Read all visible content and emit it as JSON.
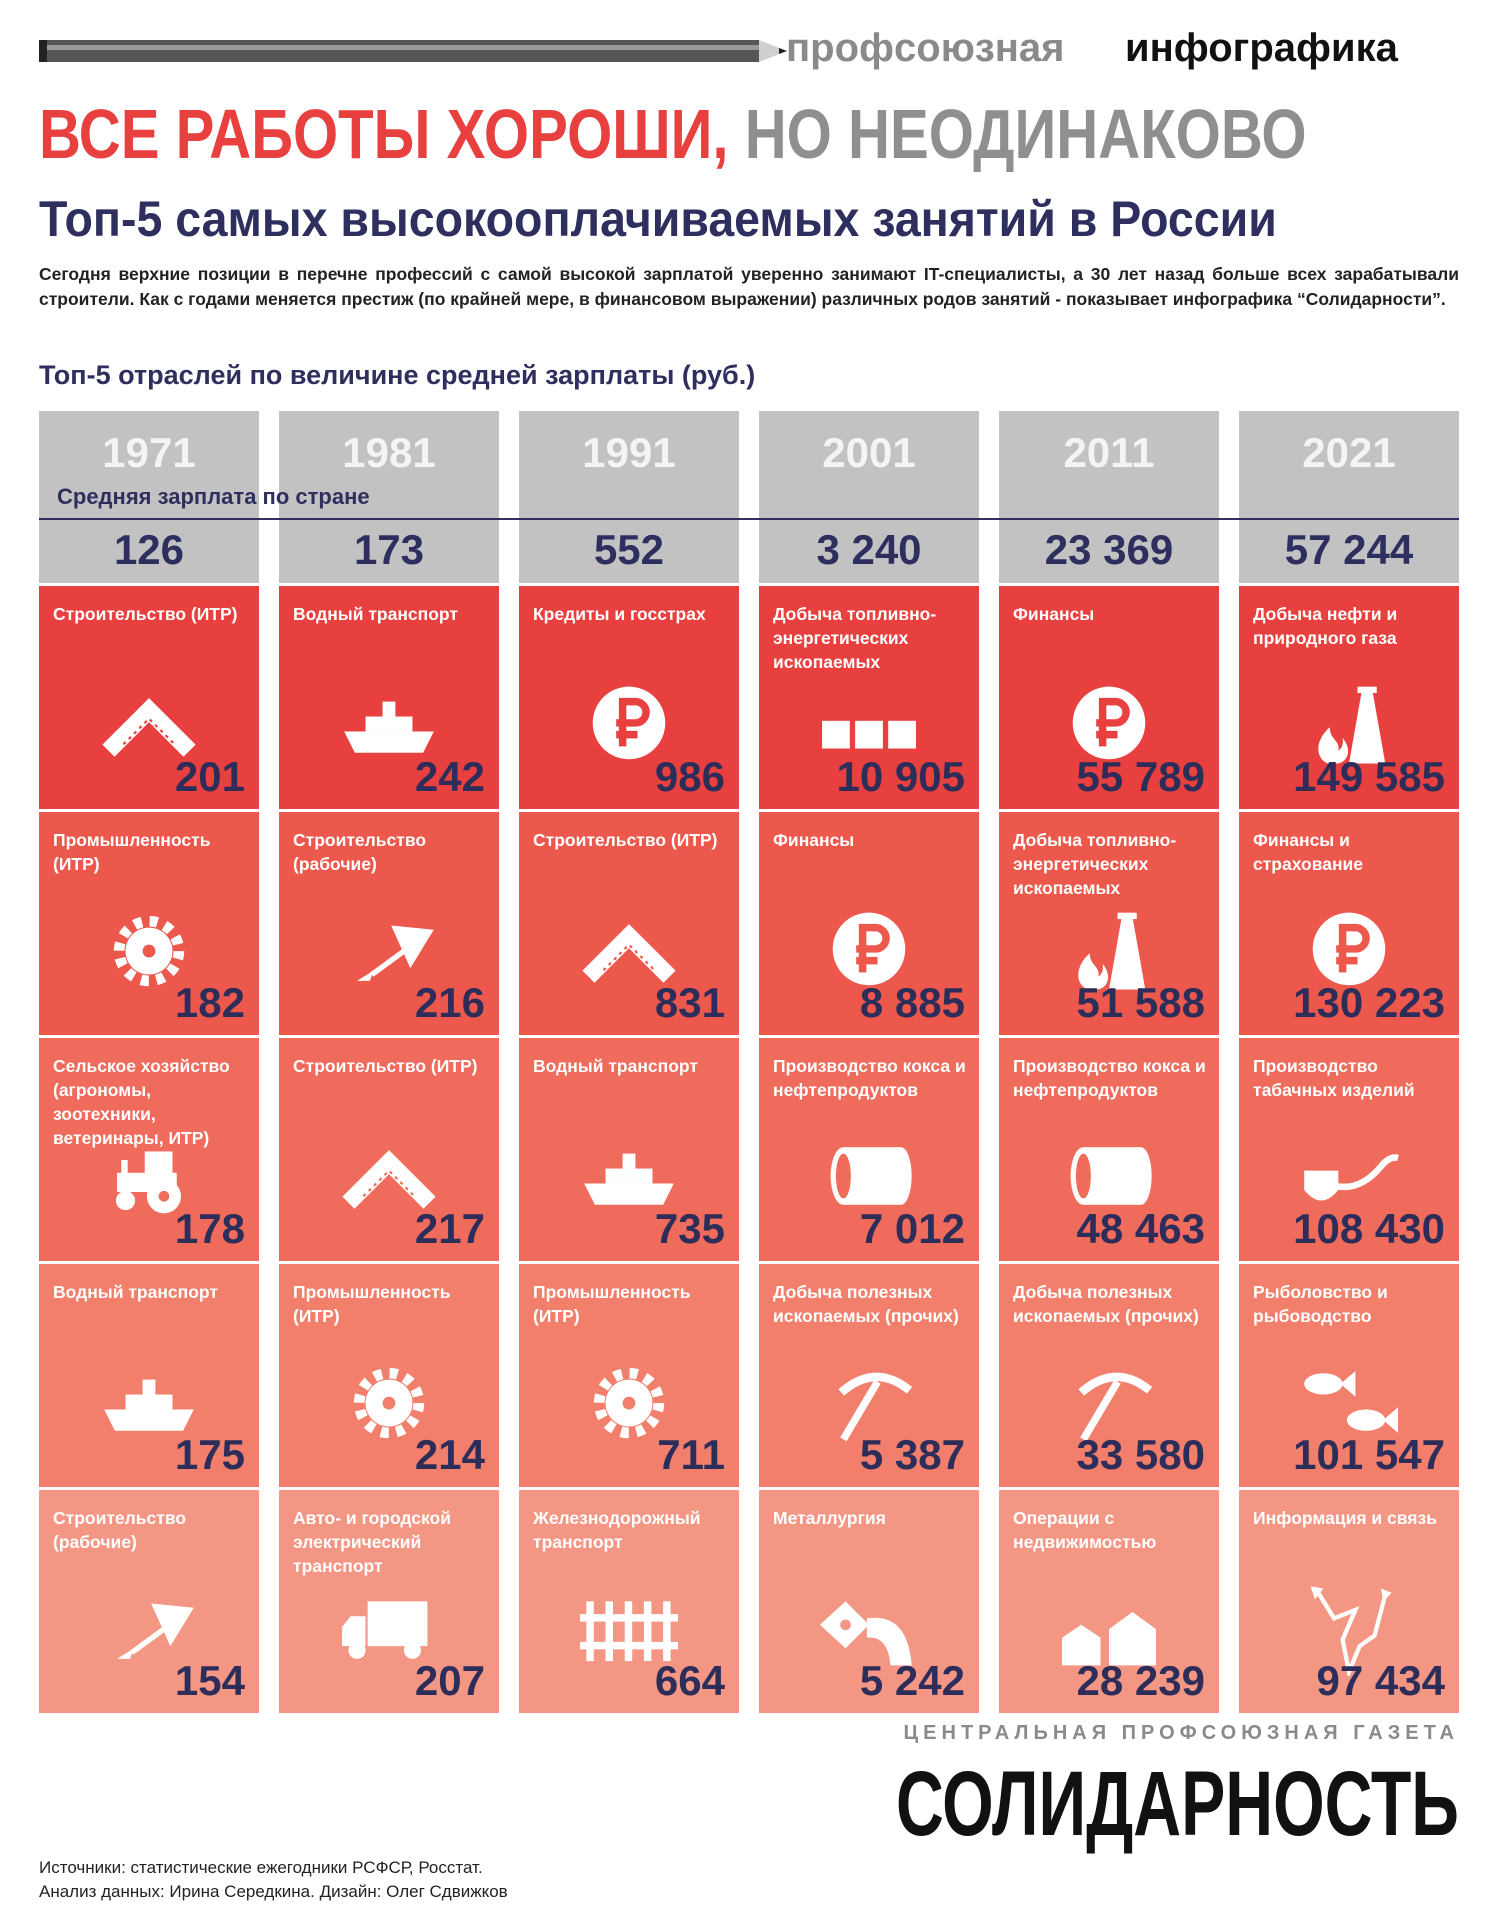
{
  "header": {
    "series": "профсоюзная",
    "brand": "инфографика"
  },
  "title": {
    "main": "ВСЕ РАБОТЫ ХОРОШИ,",
    "accent": "НО НЕОДИНАКОВО"
  },
  "subtitle": "Топ-5 самых высокооплачиваемых занятий в России",
  "intro": "Сегодня верхние позиции в перечне профессий с самой высокой зарплатой уверенно занимают IT-специалисты, а 30 лет назад больше всех зарабатывали строители. Как с годами меняется престиж (по крайней мере, в финансовом выражении) различных родов занятий - показывает инфографика “Солидарности”.",
  "section_title": "Топ-5 отраслей по величине средней зарплаты (руб.)",
  "avg_label": "Средняя зарплата по стране",
  "columns": [
    {
      "year": "1971",
      "average": "126",
      "rows": [
        {
          "label": "Строительство (ИТР)",
          "value": "201"
        },
        {
          "label": "Промышленность (ИТР)",
          "value": "182"
        },
        {
          "label": "Сельское хозяйство (агрономы, зоотехники, ветеринары, ИТР)",
          "value": "178"
        },
        {
          "label": "Водный транспорт",
          "value": "175"
        },
        {
          "label": "Строительство (рабочие)",
          "value": "154"
        }
      ]
    },
    {
      "year": "1981",
      "average": "173",
      "rows": [
        {
          "label": "Водный транспорт",
          "value": "242"
        },
        {
          "label": "Строительство (рабочие)",
          "value": "216"
        },
        {
          "label": "Строительство (ИТР)",
          "value": "217"
        },
        {
          "label": "Промышленность (ИТР)",
          "value": "214"
        },
        {
          "label": "Авто- и городской электрический транспорт",
          "value": "207"
        }
      ]
    },
    {
      "year": "1991",
      "average": "552",
      "rows": [
        {
          "label": "Кредиты и госстрах",
          "value": "986"
        },
        {
          "label": "Строительство (ИТР)",
          "value": "831"
        },
        {
          "label": "Водный транспорт",
          "value": "735"
        },
        {
          "label": "Промышленность (ИТР)",
          "value": "711"
        },
        {
          "label": "Железнодорожный транспорт",
          "value": "664"
        }
      ]
    },
    {
      "year": "2001",
      "average": "3 240",
      "rows": [
        {
          "label": "Добыча топливно-энергетических ископаемых",
          "value": "10 905"
        },
        {
          "label": "Финансы",
          "value": "8 885"
        },
        {
          "label": "Производство кокса и нефтепродуктов",
          "value": "7 012"
        },
        {
          "label": "Добыча полезных ископаемых (прочих)",
          "value": "5 387"
        },
        {
          "label": "Металлургия",
          "value": "5 242"
        }
      ]
    },
    {
      "year": "2011",
      "average": "23 369",
      "rows": [
        {
          "label": "Финансы",
          "value": "55 789"
        },
        {
          "label": "Добыча топливно-энергетических ископаемых",
          "value": "51 588"
        },
        {
          "label": "Производство кокса и нефтепродуктов",
          "value": "48 463"
        },
        {
          "label": "Добыча полезных ископаемых (прочих)",
          "value": "33 580"
        },
        {
          "label": "Операции с недвижимостью",
          "value": "28 239"
        }
      ]
    },
    {
      "year": "2021",
      "average": "57 244",
      "rows": [
        {
          "label": "Добыча нефти и природного газа",
          "value": "149 585"
        },
        {
          "label": "Финансы и страхование",
          "value": "130 223"
        },
        {
          "label": "Производство табачных изделий",
          "value": "108 430"
        },
        {
          "label": "Рыболовство и рыбоводство",
          "value": "101 547"
        },
        {
          "label": "Информация и связь",
          "value": "97 434"
        }
      ]
    }
  ],
  "footer": {
    "tagline": "ЦЕНТРАЛЬНАЯ ПРОФСОЮЗНАЯ ГАЗЕТА",
    "logo": "СОЛИДАРНОСТЬ",
    "sources": "Источники: статистические ежегодники РСФСР, Росстат.",
    "credits": "Анализ данных: Ирина Середкина. Дизайн: Олег Сдвижков"
  }
}
